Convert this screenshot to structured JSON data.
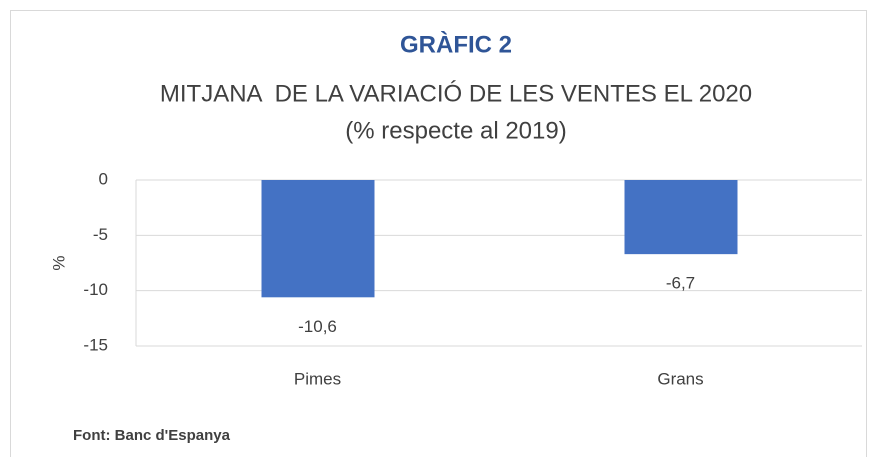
{
  "chart_data": {
    "type": "bar",
    "title": "GRÀFIC 2",
    "subtitle": [
      "MITJANA  DE LA VARIACIÓ DE LES VENTES EL 2020",
      "(% respecte al 2019)"
    ],
    "y_label": "%",
    "categories": [
      "Pimes",
      "Grans"
    ],
    "values": [
      -10.6,
      -6.7
    ],
    "value_labels": [
      "-10,6",
      "-6,7"
    ],
    "color": "#4472c4",
    "ylim": [
      -15,
      0
    ],
    "yticks": [
      0,
      -5,
      -10,
      -15
    ],
    "grid": true,
    "source": "Font: Banc d'Espanya"
  }
}
